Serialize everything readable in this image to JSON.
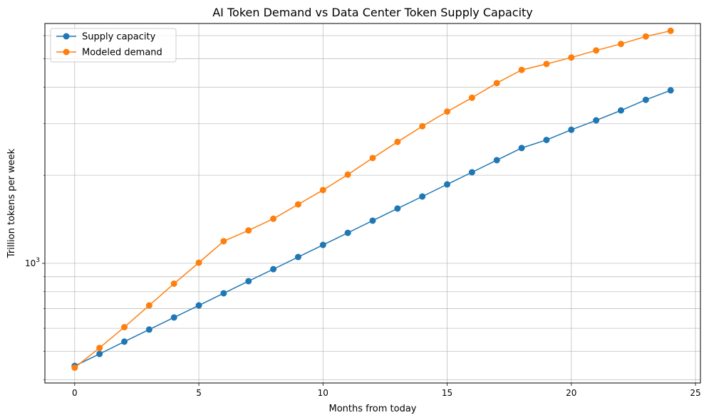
{
  "chart_data": {
    "type": "line",
    "title": "AI Token Demand vs Data Center Token Supply Capacity",
    "xlabel": "Months from today",
    "ylabel": "Trillion tokens per week",
    "x": [
      0,
      1,
      2,
      3,
      4,
      5,
      6,
      7,
      8,
      9,
      10,
      11,
      12,
      13,
      14,
      15,
      16,
      17,
      18,
      19,
      20,
      21,
      22,
      23,
      24
    ],
    "xlim": [
      -1.2,
      25.2
    ],
    "ylim": [
      390,
      6600
    ],
    "yscale": "log",
    "grid": true,
    "xticks": [
      0,
      5,
      10,
      15,
      20,
      25
    ],
    "xtick_labels": [
      "0",
      "5",
      "10",
      "15",
      "20",
      "25"
    ],
    "ytick_major": [
      1000
    ],
    "ytick_major_labels": [
      {
        "base": "10",
        "exp": "3"
      }
    ],
    "ytick_minor": [
      400,
      500,
      600,
      700,
      800,
      900,
      2000,
      3000,
      4000,
      5000,
      6000
    ],
    "legend_position": "upper-left",
    "series": [
      {
        "name": "Supply capacity",
        "color": "#1f77b4",
        "values": [
          446,
          490,
          540,
          594,
          653,
          718,
          790,
          869,
          955,
          1051,
          1156,
          1271,
          1399,
          1539,
          1692,
          1861,
          2047,
          2252,
          2478,
          2640,
          2860,
          3080,
          3330,
          3620,
          3900
        ]
      },
      {
        "name": "Modeled demand",
        "color": "#ff7f0e",
        "values": [
          440,
          514,
          605,
          718,
          852,
          1005,
          1190,
          1295,
          1420,
          1590,
          1780,
          2010,
          2290,
          2600,
          2940,
          3300,
          3680,
          4130,
          4580,
          4800,
          5050,
          5340,
          5620,
          5960,
          6230
        ]
      }
    ]
  }
}
